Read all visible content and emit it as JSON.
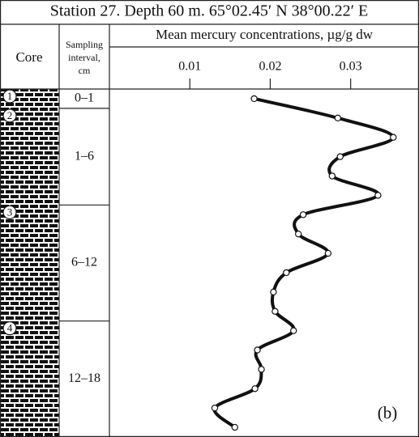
{
  "chart_data": {
    "type": "line",
    "title": "Station 27. Depth 60 m. 65°02.45′ N 38°00.22′ E",
    "core_header": "Core",
    "interval_header": [
      "Sampling",
      "interval,",
      "cm"
    ],
    "x_label": "Mean mercury concentrations, µg/g dw",
    "panel_label": "(b)",
    "intervals": [
      {
        "label": "0–1",
        "from": 0,
        "to": 1,
        "layer": "1"
      },
      {
        "label": "1–6",
        "from": 1,
        "to": 6,
        "layer": "2"
      },
      {
        "label": "6–12",
        "from": 6,
        "to": 12,
        "layer": "3"
      },
      {
        "label": "12–18",
        "from": 12,
        "to": 18,
        "layer": "4"
      }
    ],
    "depths": [
      0.5,
      1.5,
      2.5,
      3.5,
      4.5,
      5.5,
      6.5,
      7.5,
      8.5,
      9.5,
      10.5,
      11.5,
      12.5,
      13.5,
      14.5,
      15.5,
      16.5,
      17.5
    ],
    "values": [
      0.018,
      0.0284,
      0.0353,
      0.0287,
      0.0277,
      0.0334,
      0.0241,
      0.0235,
      0.0272,
      0.022,
      0.0204,
      0.0206,
      0.0229,
      0.0184,
      0.0189,
      0.0181,
      0.0131,
      0.0156
    ],
    "xlim": [
      0,
      0.0385
    ],
    "xticks": [
      0.01,
      0.02,
      0.03
    ],
    "ylim": [
      0,
      18
    ],
    "color": "#111111"
  }
}
